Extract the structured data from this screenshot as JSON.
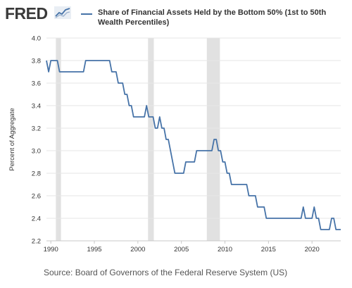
{
  "logo": {
    "text": "FRED"
  },
  "legend": {
    "series_color": "#4572a7",
    "title": "Share of Financial Assets Held by the Bottom 50% (1st to 50th Wealth Percentiles)"
  },
  "source": "Source: Board of Governors of the Federal Reserve System (US)",
  "chart_data": {
    "type": "line",
    "title": "Share of Financial Assets Held by the Bottom 50% (1st to 50th Wealth Percentiles)",
    "xlabel": "",
    "ylabel": "Percent of Aggregate",
    "xlim": [
      1989.5,
      2023.3
    ],
    "ylim": [
      2.2,
      4.0
    ],
    "x_ticks": [
      1990,
      1995,
      2000,
      2005,
      2010,
      2015,
      2020
    ],
    "y_ticks": [
      2.2,
      2.4,
      2.6,
      2.8,
      3.0,
      3.2,
      3.4,
      3.6,
      3.8,
      4.0
    ],
    "y_tick_labels": [
      "2.2",
      "2.4",
      "2.6",
      "2.8",
      "3.0",
      "3.2",
      "3.4",
      "3.6",
      "3.8",
      "4.0"
    ],
    "grid": "horizontal",
    "recessions": [
      [
        1990.58,
        1991.17
      ],
      [
        2001.17,
        2001.83
      ],
      [
        2007.92,
        2009.42
      ]
    ],
    "series": [
      {
        "color": "#4572a7",
        "points": [
          [
            1989.5,
            3.8
          ],
          [
            1989.75,
            3.7
          ],
          [
            1990.0,
            3.8
          ],
          [
            1990.25,
            3.8
          ],
          [
            1990.5,
            3.8
          ],
          [
            1990.75,
            3.8
          ],
          [
            1991.0,
            3.7
          ],
          [
            1991.25,
            3.7
          ],
          [
            1991.5,
            3.7
          ],
          [
            1991.75,
            3.7
          ],
          [
            1992.0,
            3.7
          ],
          [
            1992.25,
            3.7
          ],
          [
            1992.5,
            3.7
          ],
          [
            1992.75,
            3.7
          ],
          [
            1993.0,
            3.7
          ],
          [
            1993.25,
            3.7
          ],
          [
            1993.5,
            3.7
          ],
          [
            1993.75,
            3.7
          ],
          [
            1994.0,
            3.8
          ],
          [
            1994.25,
            3.8
          ],
          [
            1994.5,
            3.8
          ],
          [
            1994.75,
            3.8
          ],
          [
            1995.0,
            3.8
          ],
          [
            1995.25,
            3.8
          ],
          [
            1995.5,
            3.8
          ],
          [
            1995.75,
            3.8
          ],
          [
            1996.0,
            3.8
          ],
          [
            1996.25,
            3.8
          ],
          [
            1996.5,
            3.8
          ],
          [
            1996.75,
            3.8
          ],
          [
            1997.0,
            3.7
          ],
          [
            1997.25,
            3.7
          ],
          [
            1997.5,
            3.7
          ],
          [
            1997.75,
            3.6
          ],
          [
            1998.0,
            3.6
          ],
          [
            1998.25,
            3.6
          ],
          [
            1998.5,
            3.5
          ],
          [
            1998.75,
            3.5
          ],
          [
            1999.0,
            3.4
          ],
          [
            1999.25,
            3.4
          ],
          [
            1999.5,
            3.3
          ],
          [
            1999.75,
            3.3
          ],
          [
            2000.0,
            3.3
          ],
          [
            2000.25,
            3.3
          ],
          [
            2000.5,
            3.3
          ],
          [
            2000.75,
            3.3
          ],
          [
            2001.0,
            3.4
          ],
          [
            2001.25,
            3.3
          ],
          [
            2001.5,
            3.3
          ],
          [
            2001.75,
            3.3
          ],
          [
            2002.0,
            3.2
          ],
          [
            2002.25,
            3.2
          ],
          [
            2002.5,
            3.3
          ],
          [
            2002.75,
            3.2
          ],
          [
            2003.0,
            3.2
          ],
          [
            2003.25,
            3.1
          ],
          [
            2003.5,
            3.1
          ],
          [
            2003.75,
            3.0
          ],
          [
            2004.0,
            2.9
          ],
          [
            2004.25,
            2.8
          ],
          [
            2004.5,
            2.8
          ],
          [
            2004.75,
            2.8
          ],
          [
            2005.0,
            2.8
          ],
          [
            2005.25,
            2.8
          ],
          [
            2005.5,
            2.9
          ],
          [
            2005.75,
            2.9
          ],
          [
            2006.0,
            2.9
          ],
          [
            2006.25,
            2.9
          ],
          [
            2006.5,
            2.9
          ],
          [
            2006.75,
            3.0
          ],
          [
            2007.0,
            3.0
          ],
          [
            2007.25,
            3.0
          ],
          [
            2007.5,
            3.0
          ],
          [
            2007.75,
            3.0
          ],
          [
            2008.0,
            3.0
          ],
          [
            2008.25,
            3.0
          ],
          [
            2008.5,
            3.0
          ],
          [
            2008.75,
            3.1
          ],
          [
            2009.0,
            3.1
          ],
          [
            2009.25,
            3.0
          ],
          [
            2009.5,
            3.0
          ],
          [
            2009.75,
            2.9
          ],
          [
            2010.0,
            2.9
          ],
          [
            2010.25,
            2.8
          ],
          [
            2010.5,
            2.8
          ],
          [
            2010.75,
            2.7
          ],
          [
            2011.0,
            2.7
          ],
          [
            2011.25,
            2.7
          ],
          [
            2011.5,
            2.7
          ],
          [
            2011.75,
            2.7
          ],
          [
            2012.0,
            2.7
          ],
          [
            2012.25,
            2.7
          ],
          [
            2012.5,
            2.7
          ],
          [
            2012.75,
            2.6
          ],
          [
            2013.0,
            2.6
          ],
          [
            2013.25,
            2.6
          ],
          [
            2013.5,
            2.6
          ],
          [
            2013.75,
            2.5
          ],
          [
            2014.0,
            2.5
          ],
          [
            2014.25,
            2.5
          ],
          [
            2014.5,
            2.5
          ],
          [
            2014.75,
            2.4
          ],
          [
            2015.0,
            2.4
          ],
          [
            2015.5,
            2.4
          ],
          [
            2016.0,
            2.4
          ],
          [
            2016.5,
            2.4
          ],
          [
            2017.0,
            2.4
          ],
          [
            2017.5,
            2.4
          ],
          [
            2018.0,
            2.4
          ],
          [
            2018.5,
            2.4
          ],
          [
            2018.75,
            2.4
          ],
          [
            2019.0,
            2.5
          ],
          [
            2019.25,
            2.4
          ],
          [
            2019.5,
            2.4
          ],
          [
            2019.75,
            2.4
          ],
          [
            2020.0,
            2.4
          ],
          [
            2020.25,
            2.5
          ],
          [
            2020.5,
            2.4
          ],
          [
            2020.75,
            2.4
          ],
          [
            2021.0,
            2.3
          ],
          [
            2021.25,
            2.3
          ],
          [
            2021.5,
            2.3
          ],
          [
            2021.75,
            2.3
          ],
          [
            2022.0,
            2.3
          ],
          [
            2022.25,
            2.4
          ],
          [
            2022.5,
            2.4
          ],
          [
            2022.75,
            2.3
          ],
          [
            2023.0,
            2.3
          ],
          [
            2023.3,
            2.3
          ]
        ]
      }
    ]
  }
}
